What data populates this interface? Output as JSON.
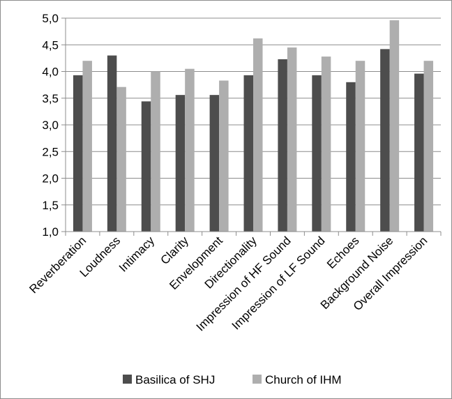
{
  "chart_data": {
    "type": "bar",
    "categories": [
      "Reverberation",
      "Loudness",
      "Intimacy",
      "Clarity",
      "Envelopment",
      "Directionality",
      "Impression of HF Sound",
      "Impression of LF Sound",
      "Echoes",
      "Background Noise",
      "Overall Impression"
    ],
    "series": [
      {
        "name": "Basilica of SHJ",
        "color": "#4d4d4d",
        "values": [
          3.93,
          4.3,
          3.44,
          3.56,
          3.56,
          3.93,
          4.23,
          3.93,
          3.8,
          4.42,
          3.96
        ]
      },
      {
        "name": "Church of IHM",
        "color": "#aeaeae",
        "values": [
          4.2,
          3.71,
          4.0,
          4.05,
          3.83,
          4.62,
          4.45,
          4.28,
          4.2,
          4.96,
          4.2
        ]
      }
    ],
    "yticks": [
      "1,0",
      "1,5",
      "2,0",
      "2,5",
      "3,0",
      "3,5",
      "4,0",
      "4,5",
      "5,0"
    ],
    "ylim": [
      1.0,
      5.0
    ],
    "title": "",
    "xlabel": "",
    "ylabel": "",
    "grid": "horizontal",
    "legend": "bottom"
  }
}
